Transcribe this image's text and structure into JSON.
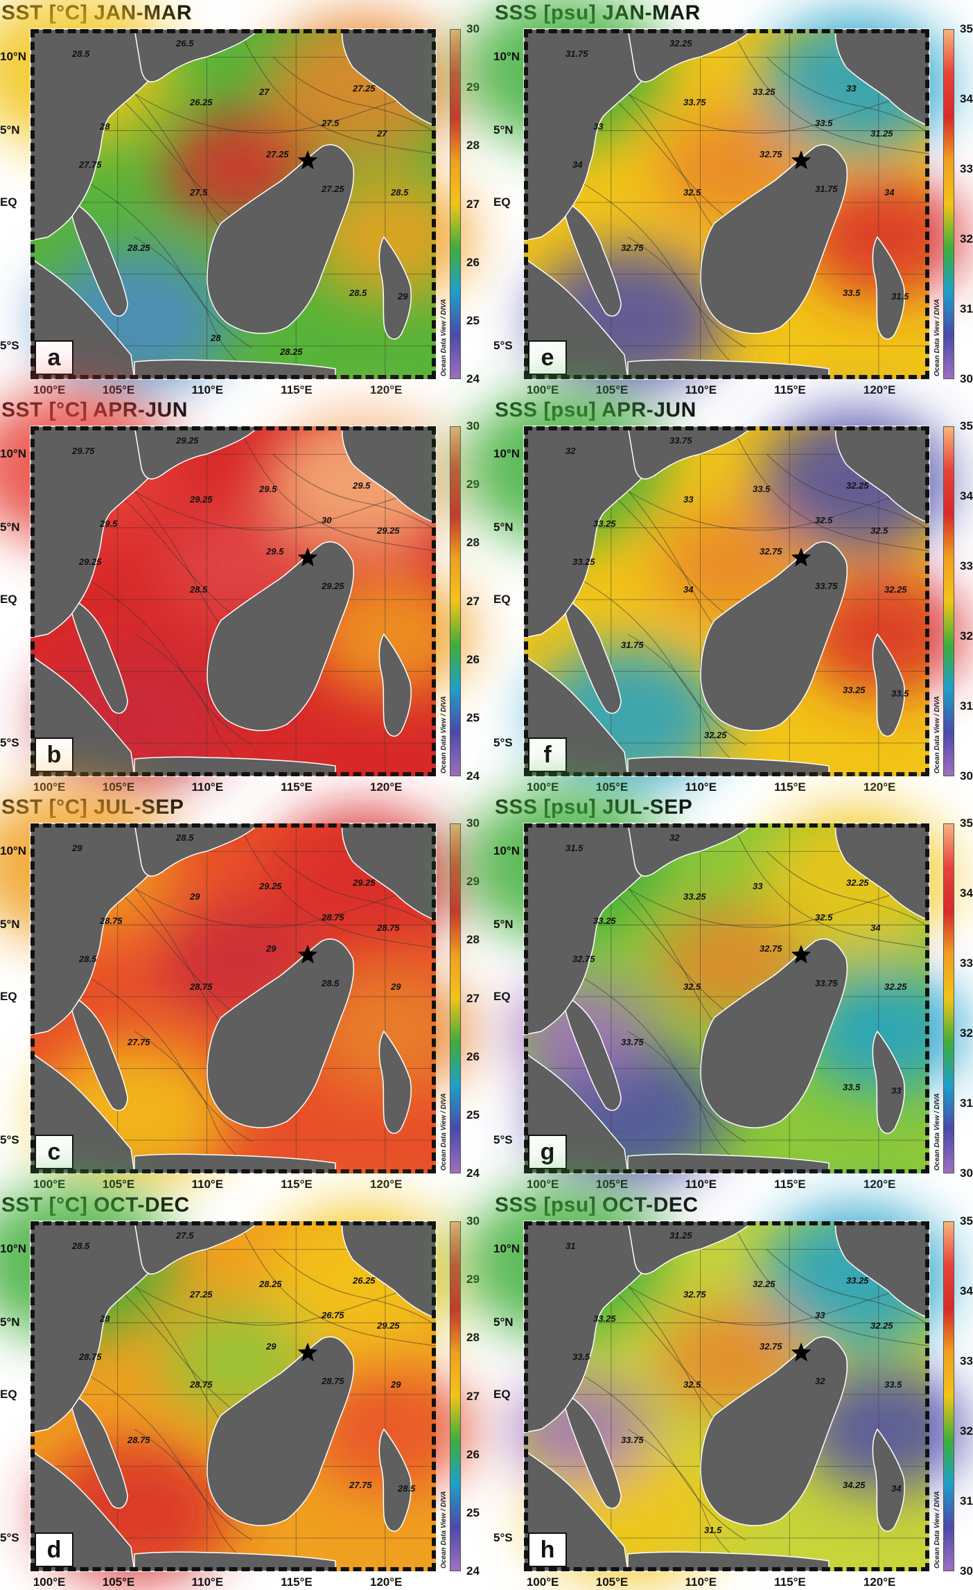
{
  "lon_labels": [
    "100°E",
    "105°E",
    "110°E",
    "115°E",
    "120°E"
  ],
  "lat_labels": [
    "10°N",
    "5°N",
    "EQ",
    "5°S"
  ],
  "credit": "Ocean Data View / DIVA",
  "colorbars": {
    "sst": {
      "ticks": [
        "30",
        "29",
        "28",
        "27",
        "26",
        "25",
        "24"
      ],
      "gradient": [
        "#f6b57c",
        "#e8423a",
        "#d82a2a",
        "#f0a020",
        "#f2c418",
        "#3fae3a",
        "#1fa0c8",
        "#4a4aa8",
        "#a070c0"
      ]
    },
    "sss": {
      "ticks": [
        "35",
        "34",
        "33",
        "32",
        "31",
        "30"
      ],
      "gradient": [
        "#f6b57c",
        "#e8423a",
        "#d82a2a",
        "#f0a020",
        "#f2c418",
        "#3fae3a",
        "#1fa0c8",
        "#4a4aa8",
        "#a070c0"
      ]
    }
  },
  "land_color": "#5f5f5f",
  "station_marker": "black-star",
  "panels": [
    {
      "id": "a",
      "title": "SST [°C] JAN-MAR",
      "cb": "sst",
      "base": "#58b43a",
      "colors": [
        "#f2c418",
        "#e8842a",
        "#f0a020",
        "#4a88c8",
        "#d82a2a"
      ],
      "labels": [
        "28.5",
        "26.5",
        "27.25",
        "27.5",
        "26.25",
        "27",
        "28",
        "27.75",
        "27.25",
        "27.5",
        "27.25",
        "27",
        "28.25",
        "28.5",
        "29",
        "28.5",
        "28",
        "28.25"
      ]
    },
    {
      "id": "e",
      "title": "SSS [psu] JAN-MAR",
      "cb": "sss",
      "base": "#f2c418",
      "colors": [
        "#3fae3a",
        "#1fa0c8",
        "#d82a2a",
        "#4a4aa8",
        "#e8842a"
      ],
      "labels": [
        "31.75",
        "32.25",
        "33",
        "33.5",
        "33.75",
        "33.25",
        "33",
        "34",
        "32.75",
        "32.5",
        "31.75",
        "31.25",
        "32.75",
        "34",
        "31.5",
        "33.5"
      ]
    },
    {
      "id": "b",
      "title": "SST [°C] APR-JUN",
      "cb": "sst",
      "base": "#d82a2a",
      "colors": [
        "#e8423a",
        "#f6b57c",
        "#f0a020",
        "#c82838",
        "#e04848"
      ],
      "labels": [
        "29.75",
        "29.25",
        "29.5",
        "30",
        "29.25",
        "29.5",
        "29.5",
        "29.25",
        "29.5",
        "28.5",
        "29.25",
        "29.25"
      ]
    },
    {
      "id": "f",
      "title": "SSS [psu] APR-JUN",
      "cb": "sss",
      "base": "#f2c418",
      "colors": [
        "#3fae3a",
        "#4a4aa8",
        "#d82a2a",
        "#1fa0c8",
        "#e8842a"
      ],
      "labels": [
        "32",
        "33.75",
        "32.25",
        "32.5",
        "33",
        "33.5",
        "33.25",
        "33.25",
        "32.75",
        "34",
        "33.75",
        "32.5",
        "31.75",
        "32.25",
        "33.5",
        "33.25",
        "32.25"
      ]
    },
    {
      "id": "c",
      "title": "SST [°C] JUL-SEP",
      "cb": "sst",
      "base": "#e8502a",
      "colors": [
        "#f0a020",
        "#d82a2a",
        "#e8842a",
        "#f2c418",
        "#c82838"
      ],
      "labels": [
        "29",
        "28.5",
        "29.25",
        "28.75",
        "29",
        "29.25",
        "28.75",
        "28.5",
        "29",
        "28.75",
        "28.5",
        "28.75",
        "27.75",
        "29"
      ]
    },
    {
      "id": "g",
      "title": "SSS [psu] JUL-SEP",
      "cb": "sss",
      "base": "#8cc83a",
      "colors": [
        "#3fae3a",
        "#f2c418",
        "#1fa0c8",
        "#4a4aa8",
        "#e8842a",
        "#a070c0"
      ],
      "labels": [
        "31.5",
        "32",
        "32.25",
        "32.5",
        "33.25",
        "33",
        "33.25",
        "32.75",
        "32.75",
        "32.5",
        "33.75",
        "34",
        "33.75",
        "32.25",
        "33",
        "33.5"
      ]
    },
    {
      "id": "d",
      "title": "SST [°C] OCT-DEC",
      "cb": "sst",
      "base": "#f0a020",
      "colors": [
        "#3fae3a",
        "#f2c418",
        "#e8502a",
        "#d82a2a",
        "#8cc83a"
      ],
      "labels": [
        "28.5",
        "27.5",
        "26.25",
        "26.75",
        "27.25",
        "28.25",
        "28",
        "28.75",
        "29",
        "28.75",
        "28.75",
        "29.25",
        "28.75",
        "29",
        "28.5",
        "27.75"
      ]
    },
    {
      "id": "h",
      "title": "SSS [psu] OCT-DEC",
      "cb": "sss",
      "base": "#c8d43a",
      "colors": [
        "#3fae3a",
        "#1fa0c8",
        "#4a4aa8",
        "#f2c418",
        "#e8842a",
        "#a070c0"
      ],
      "labels": [
        "31",
        "31.25",
        "33.25",
        "33",
        "32.75",
        "32.25",
        "33.25",
        "33.5",
        "32.75",
        "32.5",
        "32",
        "32.25",
        "33.75",
        "33.5",
        "34",
        "34.25",
        "31.5"
      ]
    }
  ]
}
